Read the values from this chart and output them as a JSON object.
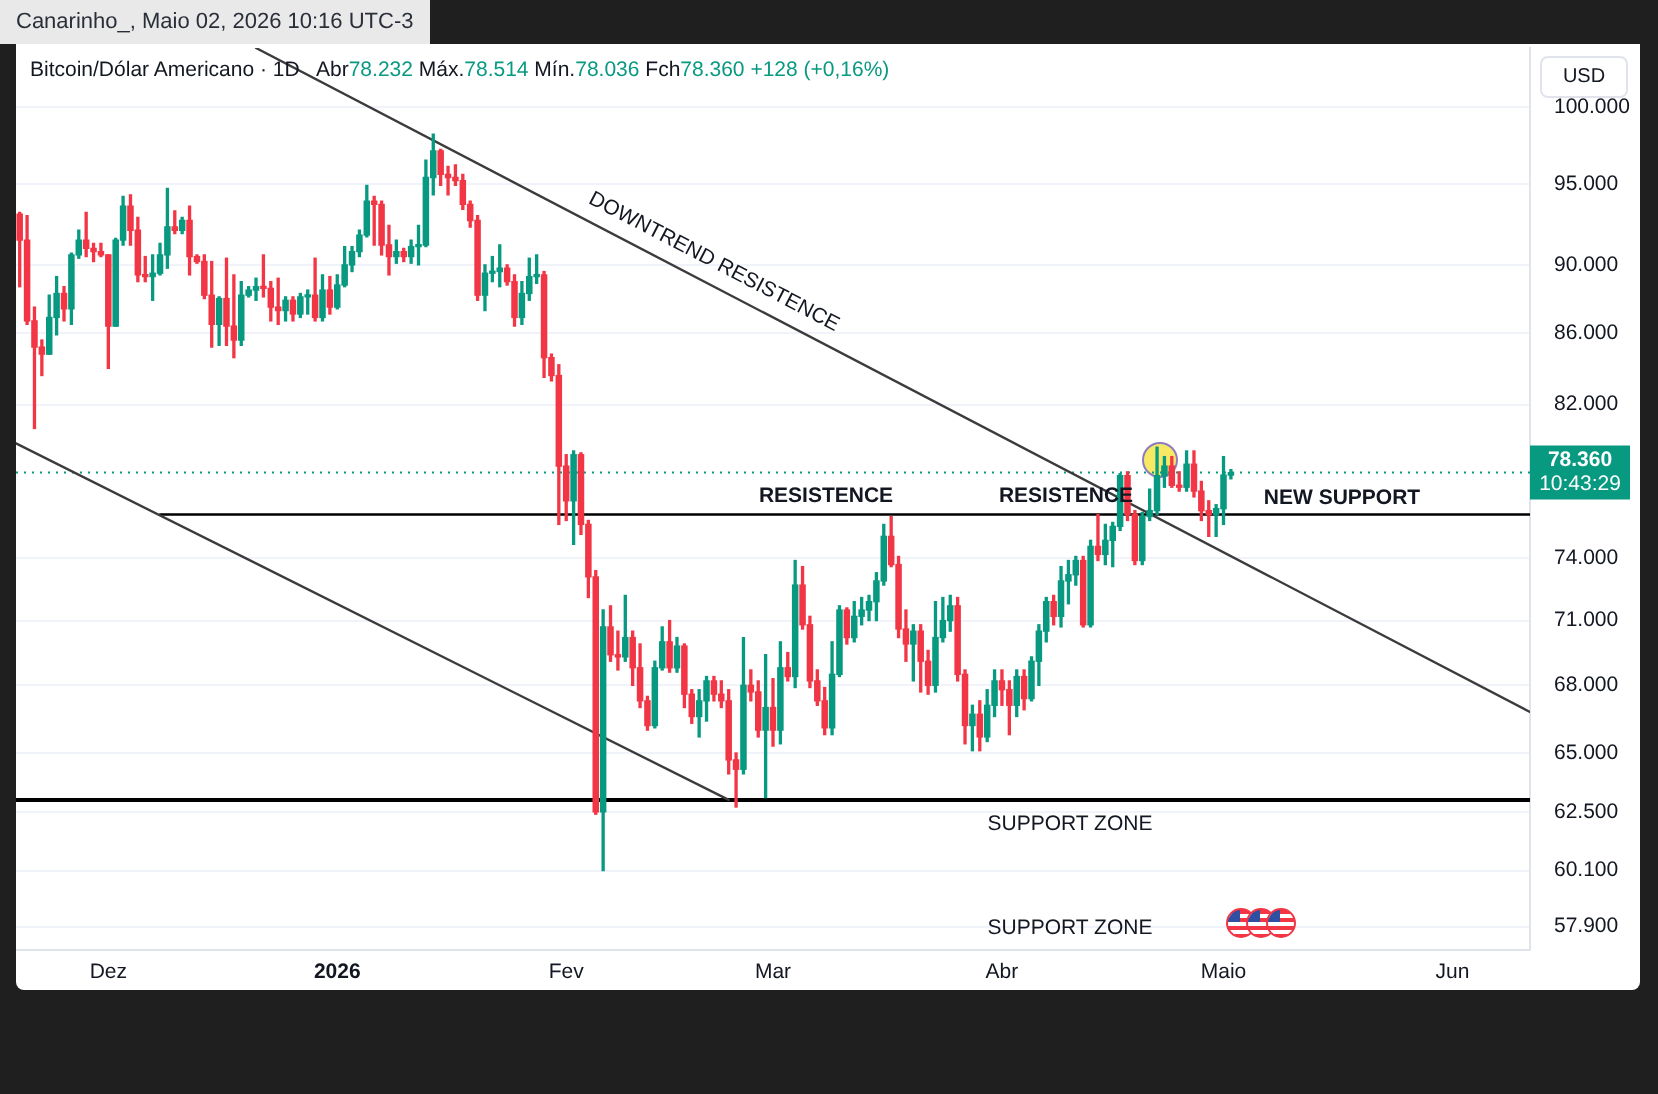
{
  "chart_data": {
    "type": "candlestick",
    "title": "Bitcoin/Dólar Americano · 1D",
    "subtitle": "Abr78.232 Máx.78.514 Mín.78.036 Fch78.360 +128 (+0,16%)",
    "ylabel": "USD",
    "x": [
      "2025-11-19",
      "2025-11-20",
      "2025-11-21",
      "2025-11-22",
      "2025-11-23",
      "2025-11-24",
      "2025-11-25",
      "2025-11-26",
      "2025-11-27",
      "2025-11-28",
      "2025-11-29",
      "2025-11-30",
      "2025-12-01",
      "2025-12-02",
      "2025-12-03",
      "2025-12-04",
      "2025-12-05",
      "2025-12-06",
      "2025-12-07",
      "2025-12-08",
      "2025-12-09",
      "2025-12-10",
      "2025-12-11",
      "2025-12-12",
      "2025-12-13",
      "2025-12-14",
      "2025-12-15",
      "2025-12-16",
      "2025-12-17",
      "2025-12-18",
      "2025-12-19",
      "2025-12-20",
      "2025-12-21",
      "2025-12-22",
      "2025-12-23",
      "2025-12-24",
      "2025-12-25",
      "2025-12-26",
      "2025-12-27",
      "2025-12-28",
      "2025-12-29",
      "2025-12-30",
      "2025-12-31",
      "2026-01-01",
      "2026-01-02",
      "2026-01-03",
      "2026-01-04",
      "2026-01-05",
      "2026-01-06",
      "2026-01-07",
      "2026-01-08",
      "2026-01-09",
      "2026-01-10",
      "2026-01-11",
      "2026-01-12",
      "2026-01-13",
      "2026-01-14",
      "2026-01-15",
      "2026-01-16",
      "2026-01-17",
      "2026-01-18",
      "2026-01-19",
      "2026-01-20",
      "2026-01-21",
      "2026-01-22",
      "2026-01-23",
      "2026-01-24",
      "2026-01-25",
      "2026-01-26",
      "2026-01-27",
      "2026-01-28",
      "2026-01-29",
      "2026-01-30",
      "2026-01-31",
      "2026-02-01",
      "2026-02-02",
      "2026-02-03",
      "2026-02-04",
      "2026-02-05",
      "2026-02-06",
      "2026-02-07",
      "2026-02-08",
      "2026-02-09",
      "2026-02-10",
      "2026-02-11",
      "2026-02-12",
      "2026-02-13",
      "2026-02-14",
      "2026-02-15",
      "2026-02-16",
      "2026-02-17",
      "2026-02-18",
      "2026-02-19",
      "2026-02-20",
      "2026-02-21",
      "2026-02-22",
      "2026-02-23",
      "2026-02-24",
      "2026-02-25",
      "2026-02-26",
      "2026-02-27",
      "2026-02-28",
      "2026-03-01",
      "2026-03-02",
      "2026-03-03",
      "2026-03-04",
      "2026-03-05",
      "2026-03-06",
      "2026-03-07",
      "2026-03-08",
      "2026-03-09",
      "2026-03-10",
      "2026-03-11",
      "2026-03-12",
      "2026-03-13",
      "2026-03-14",
      "2026-03-15",
      "2026-03-16",
      "2026-03-17",
      "2026-03-18",
      "2026-03-19",
      "2026-03-20",
      "2026-03-21",
      "2026-03-22",
      "2026-03-23",
      "2026-03-24",
      "2026-03-25",
      "2026-03-26",
      "2026-03-27",
      "2026-03-28",
      "2026-03-29",
      "2026-03-30",
      "2026-03-31",
      "2026-04-01",
      "2026-04-02",
      "2026-04-03",
      "2026-04-04",
      "2026-04-05",
      "2026-04-06",
      "2026-04-07",
      "2026-04-08",
      "2026-04-09",
      "2026-04-10",
      "2026-04-11",
      "2026-04-12",
      "2026-04-13",
      "2026-04-14",
      "2026-04-15",
      "2026-04-16",
      "2026-04-17",
      "2026-04-18",
      "2026-04-19",
      "2026-04-20",
      "2026-04-21",
      "2026-04-22",
      "2026-04-23",
      "2026-04-24",
      "2026-04-25",
      "2026-04-26",
      "2026-04-27",
      "2026-04-28",
      "2026-04-29",
      "2026-04-30",
      "2026-05-01",
      "2026-05-02"
    ],
    "ohlc": [
      [
        93100,
        93200,
        88700,
        91500
      ],
      [
        91500,
        93000,
        86500,
        86700
      ],
      [
        86700,
        87500,
        80700,
        85200
      ],
      [
        85200,
        85600,
        83600,
        84800
      ],
      [
        84800,
        88200,
        84800,
        86900
      ],
      [
        86900,
        89300,
        85900,
        88300
      ],
      [
        88300,
        88700,
        86700,
        87400
      ],
      [
        87400,
        90700,
        86500,
        90600
      ],
      [
        90600,
        92100,
        90400,
        91500
      ],
      [
        91500,
        93200,
        90500,
        91000
      ],
      [
        91000,
        91300,
        90200,
        90800
      ],
      [
        90800,
        91300,
        90500,
        90600
      ],
      [
        90600,
        90600,
        84000,
        86400
      ],
      [
        86400,
        91600,
        86400,
        91500
      ],
      [
        91500,
        94200,
        91200,
        93600
      ],
      [
        93600,
        94300,
        91200,
        92100
      ],
      [
        92100,
        92900,
        89000,
        89400
      ],
      [
        89400,
        90500,
        89000,
        89300
      ],
      [
        89300,
        90600,
        87900,
        89500
      ],
      [
        89500,
        91300,
        89400,
        90600
      ],
      [
        90600,
        94700,
        89800,
        92300
      ],
      [
        92300,
        93300,
        91900,
        92100
      ],
      [
        92100,
        92900,
        91900,
        92700
      ],
      [
        92700,
        93600,
        89400,
        90500
      ],
      [
        90500,
        90600,
        90100,
        90200
      ],
      [
        90200,
        90600,
        88000,
        88200
      ],
      [
        88200,
        90200,
        85200,
        86500
      ],
      [
        86500,
        88100,
        85300,
        88000
      ],
      [
        88000,
        90400,
        85300,
        86400
      ],
      [
        86400,
        89400,
        84600,
        85600
      ],
      [
        85600,
        89000,
        85300,
        88200
      ],
      [
        88200,
        88700,
        88100,
        88500
      ],
      [
        88500,
        89200,
        87900,
        88700
      ],
      [
        88700,
        90600,
        88100,
        88600
      ],
      [
        88600,
        89000,
        86700,
        87500
      ],
      [
        87500,
        89200,
        86500,
        87300
      ],
      [
        87300,
        88100,
        86700,
        87900
      ],
      [
        87900,
        88100,
        86700,
        87100
      ],
      [
        87100,
        88300,
        86900,
        88100
      ],
      [
        88100,
        88500,
        87100,
        88200
      ],
      [
        88200,
        90400,
        86700,
        86900
      ],
      [
        86900,
        89400,
        86700,
        88500
      ],
      [
        88500,
        89300,
        87100,
        87500
      ],
      [
        87500,
        89400,
        87400,
        88800
      ],
      [
        88800,
        91100,
        88700,
        90000
      ],
      [
        90000,
        91100,
        89600,
        90800
      ],
      [
        90800,
        92100,
        90500,
        91800
      ],
      [
        91800,
        94900,
        91700,
        93900
      ],
      [
        93900,
        94200,
        91200,
        93700
      ],
      [
        93700,
        93900,
        90600,
        91200
      ],
      [
        91200,
        92400,
        89400,
        90500
      ],
      [
        90500,
        91500,
        90100,
        90800
      ],
      [
        90800,
        91000,
        90200,
        90500
      ],
      [
        90500,
        91500,
        90100,
        91100
      ],
      [
        91100,
        92400,
        90000,
        91200
      ],
      [
        91200,
        96500,
        91100,
        95400
      ],
      [
        95400,
        98200,
        94300,
        97100
      ],
      [
        97100,
        97200,
        94900,
        95600
      ],
      [
        95600,
        96100,
        94300,
        95400
      ],
      [
        95400,
        96200,
        94900,
        95200
      ],
      [
        95200,
        95600,
        93400,
        93700
      ],
      [
        93700,
        93900,
        92300,
        92700
      ],
      [
        92700,
        93000,
        87900,
        88200
      ],
      [
        88200,
        90000,
        87300,
        89500
      ],
      [
        89500,
        90500,
        89000,
        89600
      ],
      [
        89600,
        91200,
        88700,
        89800
      ],
      [
        89800,
        90000,
        88800,
        89000
      ],
      [
        89000,
        89400,
        86400,
        86900
      ],
      [
        86900,
        89000,
        86500,
        88300
      ],
      [
        88300,
        90400,
        87900,
        89300
      ],
      [
        89300,
        90600,
        88900,
        89400
      ],
      [
        89400,
        89600,
        83500,
        84600
      ],
      [
        84600,
        84800,
        83300,
        83600
      ],
      [
        83600,
        84200,
        75700,
        78700
      ],
      [
        78700,
        79300,
        75900,
        76900
      ],
      [
        76900,
        79500,
        74700,
        79300
      ],
      [
        79300,
        79400,
        75200,
        75700
      ],
      [
        75700,
        75900,
        72100,
        73100
      ],
      [
        73100,
        73400,
        62400,
        62500
      ],
      [
        62500,
        71500,
        60100,
        70700
      ],
      [
        70700,
        71700,
        69100,
        69400
      ],
      [
        69400,
        70500,
        68700,
        69300
      ],
      [
        69300,
        72200,
        69100,
        70200
      ],
      [
        70200,
        70500,
        68000,
        68800
      ],
      [
        68800,
        69900,
        67000,
        67300
      ],
      [
        67300,
        67500,
        66000,
        66200
      ],
      [
        66200,
        69100,
        66100,
        68800
      ],
      [
        68800,
        70700,
        68700,
        70000
      ],
      [
        70000,
        71000,
        68600,
        68800
      ],
      [
        68800,
        70200,
        68600,
        69800
      ],
      [
        69800,
        69900,
        67000,
        67600
      ],
      [
        67600,
        67800,
        66300,
        66600
      ],
      [
        66600,
        67800,
        65700,
        67300
      ],
      [
        67300,
        68400,
        66400,
        68200
      ],
      [
        68200,
        68400,
        67300,
        67600
      ],
      [
        67600,
        68200,
        67000,
        67300
      ],
      [
        67300,
        67800,
        64100,
        64700
      ],
      [
        64700,
        65000,
        62700,
        64300
      ],
      [
        64300,
        70200,
        64100,
        68000
      ],
      [
        68000,
        68700,
        67300,
        67700
      ],
      [
        67700,
        68200,
        65700,
        66000
      ],
      [
        66000,
        69400,
        63100,
        67000
      ],
      [
        67000,
        68300,
        65300,
        66000
      ],
      [
        66000,
        70000,
        65400,
        68800
      ],
      [
        68800,
        69500,
        68200,
        68400
      ],
      [
        68400,
        73900,
        67900,
        72700
      ],
      [
        72700,
        73600,
        70600,
        70800
      ],
      [
        70800,
        71200,
        67900,
        68200
      ],
      [
        68200,
        68700,
        67100,
        67300
      ],
      [
        67300,
        67900,
        65800,
        66100
      ],
      [
        66100,
        70000,
        65800,
        68500
      ],
      [
        68500,
        71700,
        68400,
        71500
      ],
      [
        71500,
        71600,
        69900,
        70200
      ],
      [
        70200,
        71900,
        70000,
        71200
      ],
      [
        71200,
        72100,
        70800,
        71500
      ],
      [
        71500,
        72200,
        71000,
        71900
      ],
      [
        71900,
        73300,
        71000,
        72900
      ],
      [
        72900,
        75700,
        72700,
        75100
      ],
      [
        75100,
        76100,
        73600,
        73700
      ],
      [
        73700,
        74100,
        70200,
        70600
      ],
      [
        70600,
        71500,
        69100,
        69900
      ],
      [
        69900,
        70800,
        68200,
        70500
      ],
      [
        70500,
        70800,
        67700,
        69100
      ],
      [
        69100,
        69600,
        67600,
        68000
      ],
      [
        68000,
        71900,
        67700,
        70200
      ],
      [
        70200,
        72100,
        70000,
        71000
      ],
      [
        71000,
        72200,
        70500,
        71700
      ],
      [
        71700,
        72100,
        68200,
        68500
      ],
      [
        68500,
        68700,
        65400,
        66200
      ],
      [
        66200,
        67100,
        65100,
        66700
      ],
      [
        66700,
        67300,
        65100,
        65700
      ],
      [
        65700,
        67800,
        65500,
        67100
      ],
      [
        67100,
        68700,
        66600,
        68200
      ],
      [
        68200,
        68700,
        67100,
        67800
      ],
      [
        67800,
        68200,
        65800,
        67100
      ],
      [
        67100,
        68700,
        66600,
        68400
      ],
      [
        68400,
        68700,
        66900,
        67400
      ],
      [
        67400,
        69300,
        67300,
        69100
      ],
      [
        69100,
        70800,
        68000,
        70500
      ],
      [
        70500,
        72100,
        70000,
        71900
      ],
      [
        71900,
        72200,
        70800,
        71200
      ],
      [
        71200,
        73600,
        70700,
        72900
      ],
      [
        72900,
        73900,
        71800,
        73200
      ],
      [
        73200,
        74100,
        72700,
        73900
      ],
      [
        73900,
        74100,
        70700,
        70800
      ],
      [
        70800,
        74900,
        70700,
        74600
      ],
      [
        74600,
        76200,
        73900,
        74200
      ],
      [
        74200,
        75700,
        73700,
        74900
      ],
      [
        74900,
        75800,
        73600,
        75600
      ],
      [
        75600,
        78300,
        75400,
        78200
      ],
      [
        78200,
        78400,
        75900,
        76200
      ],
      [
        76200,
        76400,
        73700,
        73900
      ],
      [
        73900,
        76300,
        73700,
        76100
      ],
      [
        76100,
        77500,
        75900,
        76400
      ],
      [
        76400,
        79700,
        76200,
        78200
      ],
      [
        78200,
        79200,
        77600,
        78700
      ],
      [
        78700,
        79200,
        77600,
        77700
      ],
      [
        77700,
        78400,
        77400,
        77600
      ],
      [
        77600,
        79500,
        77400,
        78800
      ],
      [
        78800,
        79500,
        77100,
        77400
      ],
      [
        77400,
        77900,
        75900,
        76400
      ],
      [
        76400,
        76900,
        75100,
        76200
      ],
      [
        76200,
        76700,
        75100,
        76500
      ],
      [
        76500,
        79200,
        75700,
        78232
      ],
      [
        78232,
        78514,
        78036,
        78360
      ]
    ],
    "colors": [
      "#f23645",
      "#f23645",
      "#f23645",
      "#f23645",
      "#089981",
      "#089981",
      "#f23645",
      "#089981",
      "#089981",
      "#f23645",
      "#f23645",
      "#f23645",
      "#f23645",
      "#089981",
      "#089981",
      "#f23645",
      "#f23645",
      "#f23645",
      "#089981",
      "#089981",
      "#089981",
      "#f23645",
      "#089981",
      "#f23645",
      "#f23645",
      "#f23645",
      "#f23645",
      "#089981",
      "#f23645",
      "#f23645",
      "#089981",
      "#089981",
      "#089981",
      "#f23645",
      "#f23645",
      "#f23645",
      "#089981",
      "#f23645",
      "#089981",
      "#089981",
      "#f23645",
      "#089981",
      "#f23645",
      "#089981",
      "#089981",
      "#089981",
      "#089981",
      "#089981",
      "#f23645",
      "#f23645",
      "#f23645",
      "#089981",
      "#f23645",
      "#089981",
      "#089981",
      "#089981",
      "#089981",
      "#f23645",
      "#f23645",
      "#f23645",
      "#f23645",
      "#f23645",
      "#f23645",
      "#089981",
      "#089981",
      "#089981",
      "#f23645",
      "#f23645",
      "#089981",
      "#089981",
      "#089981",
      "#f23645",
      "#f23645",
      "#f23645",
      "#f23645",
      "#089981",
      "#f23645",
      "#f23645",
      "#f23645",
      "#089981",
      "#f23645",
      "#f23645",
      "#089981",
      "#f23645",
      "#f23645",
      "#f23645",
      "#089981",
      "#089981",
      "#f23645",
      "#089981",
      "#f23645",
      "#f23645",
      "#089981",
      "#089981",
      "#f23645",
      "#f23645",
      "#f23645",
      "#f23645",
      "#089981",
      "#f23645",
      "#f23645",
      "#089981",
      "#f23645",
      "#089981",
      "#f23645",
      "#089981",
      "#f23645",
      "#f23645",
      "#f23645",
      "#f23645",
      "#089981",
      "#089981",
      "#f23645",
      "#089981",
      "#089981",
      "#089981",
      "#089981",
      "#089981",
      "#f23645",
      "#f23645",
      "#f23645",
      "#089981",
      "#f23645",
      "#f23645",
      "#089981",
      "#089981",
      "#089981",
      "#f23645",
      "#f23645",
      "#089981",
      "#f23645",
      "#089981",
      "#089981",
      "#f23645",
      "#f23645",
      "#089981",
      "#f23645",
      "#089981",
      "#089981",
      "#089981",
      "#f23645",
      "#089981",
      "#089981",
      "#089981",
      "#f23645",
      "#089981",
      "#f23645",
      "#089981",
      "#089981",
      "#089981",
      "#f23645",
      "#f23645",
      "#089981",
      "#089981",
      "#089981",
      "#089981",
      "#f23645",
      "#f23645",
      "#089981",
      "#f23645",
      "#f23645",
      "#f23645",
      "#089981",
      "#089981",
      "#089981"
    ],
    "series": [
      {
        "type": "line",
        "x": [
          "2025-12-21",
          "2026-06-11T12:00"
        ],
        "values": [
          104000,
          66800
        ],
        "color": "#3c3c3c"
      },
      {
        "type": "line",
        "x": [
          "2025-11-18T12:00",
          "2026-02-23"
        ],
        "values": [
          79900,
          63000
        ],
        "color": "#3c3c3c"
      },
      {
        "type": "line",
        "x": [
          "2025-12-08",
          "2026-06-11T12:00"
        ],
        "values": [
          76200,
          76200
        ],
        "color": "#000000"
      }
    ],
    "xlim": [
      "2025-11-18T12:00",
      "2026-06-11T12:00"
    ],
    "xticks": [
      {
        "value": "2025-12-01",
        "label": "Dez"
      },
      {
        "value": "2026-01-01",
        "label": "2026"
      },
      {
        "value": "2026-02-01",
        "label": "Fev"
      },
      {
        "value": "2026-03-01",
        "label": "Mar"
      },
      {
        "value": "2026-04-01",
        "label": "Abr"
      },
      {
        "value": "2026-05-01",
        "label": "Maio"
      },
      {
        "value": "2026-06-01",
        "label": "Jun"
      }
    ],
    "ylim": [
      57000,
      104000
    ],
    "yticks": [
      {
        "value": 100000,
        "label": "100.000"
      },
      {
        "value": 95000,
        "label": "95.000"
      },
      {
        "value": 90000,
        "label": "90.000"
      },
      {
        "value": 86000,
        "label": "86.000"
      },
      {
        "value": 82000,
        "label": "82.000"
      },
      {
        "value": 74000,
        "label": "74.000"
      },
      {
        "value": 71000,
        "label": "71.000"
      },
      {
        "value": 68000,
        "label": "68.000"
      },
      {
        "value": 65000,
        "label": "65.000"
      },
      {
        "value": 62500,
        "label": "62.500"
      },
      {
        "value": 60100,
        "label": "60.100"
      },
      {
        "value": 57900,
        "label": "57.900"
      }
    ],
    "log": true,
    "grid": "y",
    "ref_lines": [
      {
        "axis": "y",
        "value": 63000,
        "color": "#000000"
      },
      {
        "axis": "y",
        "value": 78360,
        "label": "78.360\n10:43:29",
        "color": "#089981",
        "line_style": "dotted"
      }
    ],
    "annotations": [
      "Canarinho_, Maio 02, 2026 10:16 UTC-3",
      "DOWNTREND RESISTENCE",
      "RESISTENCE",
      "RESISTENCE",
      "NEW SUPPORT",
      "SUPPORT ZONE",
      "SUPPORT ZONE"
    ]
  }
}
